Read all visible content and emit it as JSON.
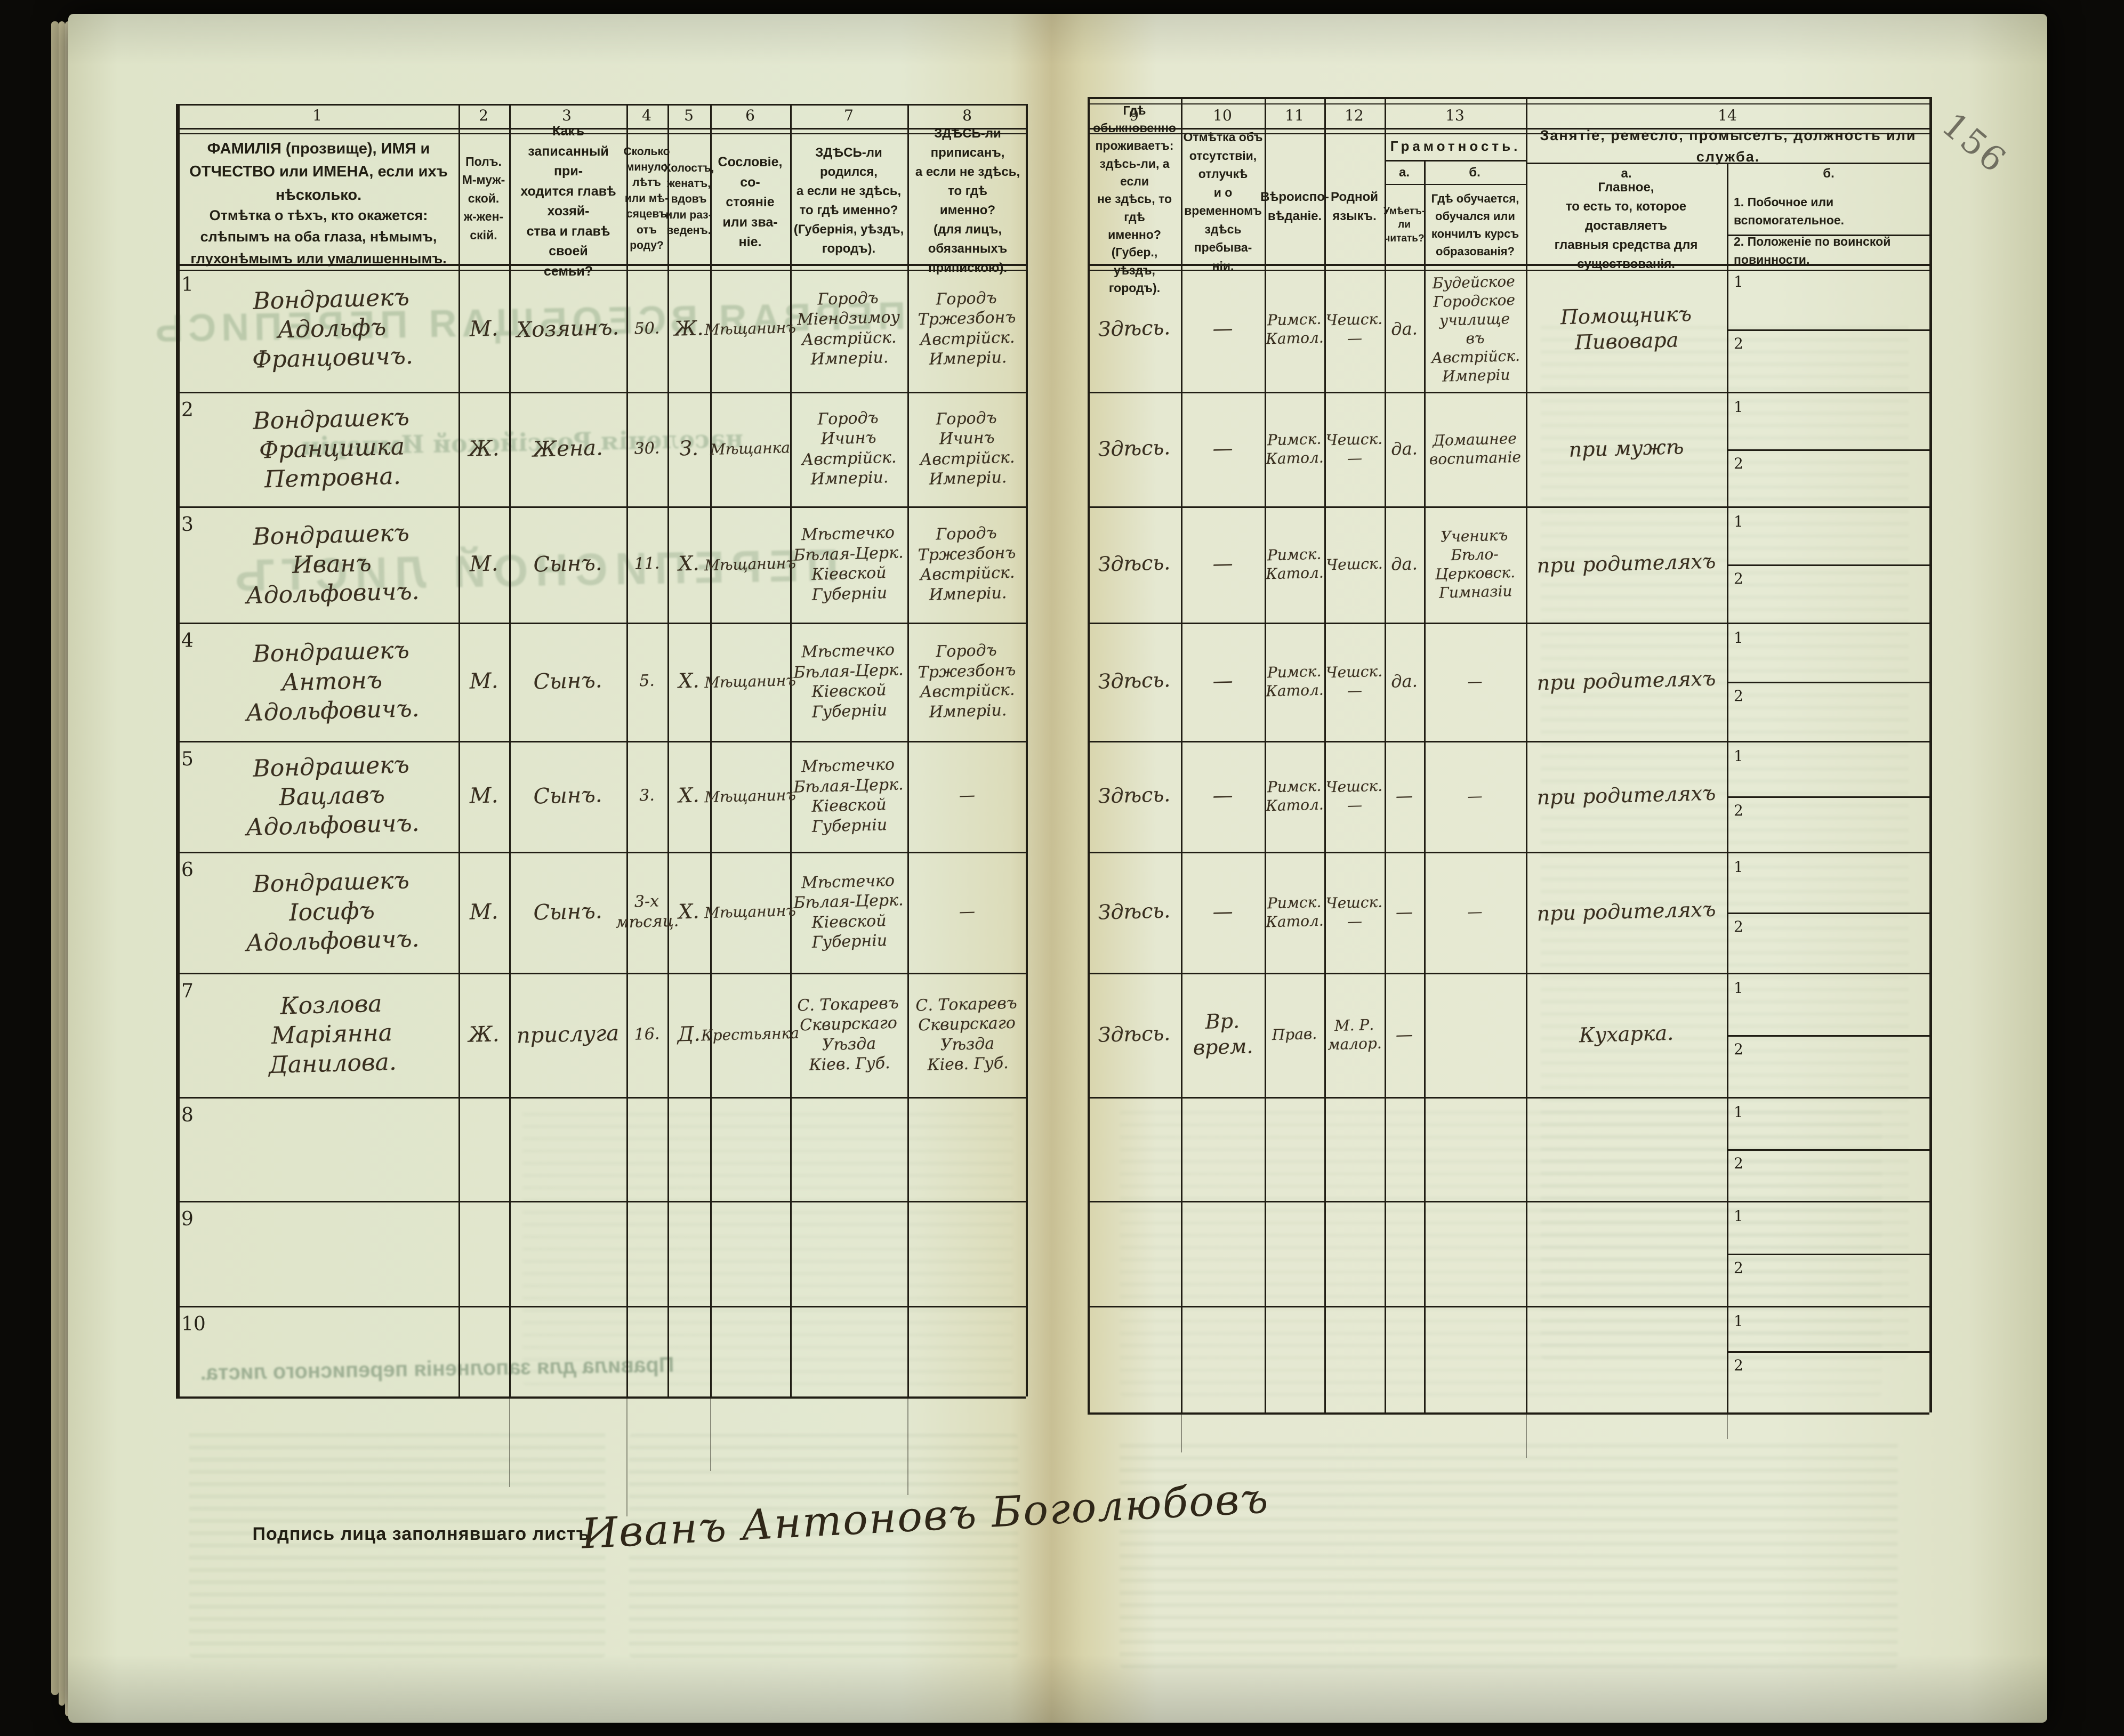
{
  "page": {
    "pencil_page_number": "156",
    "signature_label": "Подпись лица заполнявшаго листъ",
    "signature": "Иванъ Антоновъ Боголюбовъ"
  },
  "ghost_bleedthrough": {
    "census_title": "ПЕРВАЯ ВСЕОБЩАЯ ПЕРЕПИСЬ",
    "census_subtitle": "населенія Россійской Имперіи",
    "form_title": "ПЕРЕПИСНОЙ ЛИСТЪ",
    "rules_title": "Правила для заполненія переписного листа."
  },
  "table": {
    "column_numbers": [
      "1",
      "2",
      "3",
      "4",
      "5",
      "6",
      "7",
      "8",
      "9",
      "10",
      "11",
      "12",
      "13",
      "14"
    ],
    "row_sub_labels": [
      "1",
      "2"
    ],
    "headers": {
      "c1a": "ФАМИЛІЯ (прозвище), ИМЯ и ОТЧЕСТВО или ИМЕНА, если ихъ нѣсколько.",
      "c1b": "Отмѣтка о тѣхъ, кто окажется: слѣпымъ на оба глаза, нѣмымъ, глухонѣмымъ или умалишеннымъ.",
      "c2": "Полъ.\nМ-муж-\nской.\nж-жен-\nскій.",
      "c3": "Какъ записанный при-\nходится главѣ хозяй-\nства и главѣ своей\nсемьи?",
      "c4": "Сколько\nминуло\nлѣтъ\nили мѣ-\nсяцевъ\nотъ роду?",
      "c5": "Холостъ,\nженатъ,\nвдовъ\nили раз-\nведенъ.",
      "c6": "Сословіе, со-\nстояніе или зва-\nніе.",
      "c7": "ЗДѢСЬ-ли родился,\nа если не здѣсь,\nто гдѣ именно?\n(Губернія, уѣздъ, городъ).",
      "c8": "ЗДѢСЬ-ли приписанъ,\nа если не здѣсь, то гдѣ\nименно?\n(для лицъ, обязанныхъ\nприпискою).",
      "c9": "Гдѣ обыкновенно\nпроживаетъ:\nздѣсь-ли, а если\nне здѣсь, то гдѣ\nименно?\n(Губер., уѣздъ, городъ).",
      "c10": "Отмѣтка объ\nотсутствіи, отлучкѣ\nи о временномъ\nздѣсь пребыва-\nніи.",
      "c11": "Вѣроиспо-\nвѣданіе.",
      "c12": "Родной\nязыкъ.",
      "c13": "Грамотность.",
      "c13a_label": "а.",
      "c13b_label": "б.",
      "c13a": "Умѣетъ-\nли\nчитать?",
      "c13b": "Гдѣ обучается,\nобучался или\nкончилъ курсъ\nобразованія?",
      "c14": "Занятіе, ремесло, промыселъ, должность или служба.",
      "c14a_label": "а.",
      "c14b_label": "б.",
      "c14a": "Главное,\nто есть то, которое доставляетъ\nглавныя средства для существованія.",
      "c14b_item1": "1.  Побочное или вспомогательное.",
      "c14b_item2": "2.  Положеніе по воинской повинности."
    }
  },
  "rows": [
    {
      "num": "1",
      "name": "Вондрашекъ\nАдольфъ\nФранцовичъ.",
      "sex": "М.",
      "relation": "Хозяинъ.",
      "age": "50.",
      "marital": "Ж.",
      "estate": "Мѣщанинъ",
      "birthplace": "Городъ\nМіендзимоу\nАвстрійск.\nИмперіи.",
      "registered": "Городъ\nТржезбонъ\nАвстрійск.\nИмперіи.",
      "residence": "Здѣсь.",
      "absence": "—",
      "religion": "Римск.\nКатол.",
      "language": "Чешск.\n—",
      "literacy_reads": "да.",
      "literacy_school": "Будейское\nГородское\nучилище\nвъ Австрійск.\nИмперіи",
      "occupation_main": "Помощникъ\nПивовара"
    },
    {
      "num": "2",
      "name": "Вондрашекъ\nФранцишка\nПетровна.",
      "sex": "Ж.",
      "relation": "Жена.",
      "age": "30.",
      "marital": "З.",
      "estate": "Мѣщанка",
      "birthplace": "Городъ\nИчинъ\nАвстрійск.\nИмперіи.",
      "registered": "Городъ\nИчинъ\nАвстрійск.\nИмперіи.",
      "residence": "Здѣсь.",
      "absence": "—",
      "religion": "Римск.\nКатол.",
      "language": "Чешск.\n—",
      "literacy_reads": "да.",
      "literacy_school": "Домашнее\nвоспитаніе",
      "occupation_main": "при мужѣ"
    },
    {
      "num": "3",
      "name": "Вондрашекъ\nИванъ\nАдольфовичъ.",
      "sex": "М.",
      "relation": "Сынъ.",
      "age": "11.",
      "marital": "Х.",
      "estate": "Мѣщанинъ",
      "birthplace": "Мѣстечко\nБѣлая-Церк.\nКіевской\nГуберніи",
      "registered": "Городъ\nТржезбонъ\nАвстрійск.\nИмперіи.",
      "residence": "Здѣсь.",
      "absence": "—",
      "religion": "Римск.\nКатол.",
      "language": "Чешск.",
      "literacy_reads": "да.",
      "literacy_school": "Ученикъ\nБѣло-\nЦерковск.\nГимназіи",
      "occupation_main": "при родителяхъ"
    },
    {
      "num": "4",
      "name": "Вондрашекъ\nАнтонъ\nАдольфовичъ.",
      "sex": "М.",
      "relation": "Сынъ.",
      "age": "5.",
      "marital": "Х.",
      "estate": "Мѣщанинъ",
      "birthplace": "Мѣстечко\nБѣлая-Церк.\nКіевской\nГуберніи",
      "registered": "Городъ\nТржезбонъ\nАвстрійск.\nИмперіи.",
      "residence": "Здѣсь.",
      "absence": "—",
      "religion": "Римск.\nКатол.",
      "language": "Чешск.\n—",
      "literacy_reads": "да.",
      "literacy_school": "—",
      "occupation_main": "при родителяхъ"
    },
    {
      "num": "5",
      "name": "Вондрашекъ\nВацлавъ\nАдольфовичъ.",
      "sex": "М.",
      "relation": "Сынъ.",
      "age": "3.",
      "marital": "Х.",
      "estate": "Мѣщанинъ",
      "birthplace": "Мѣстечко\nБѣлая-Церк.\nКіевской\nГуберніи",
      "registered": "—",
      "residence": "Здѣсь.",
      "absence": "—",
      "religion": "Римск.\nКатол.",
      "language": "Чешск.\n—",
      "literacy_reads": "—",
      "literacy_school": "—",
      "occupation_main": "при родителяхъ"
    },
    {
      "num": "6",
      "name": "Вондрашекъ\nІосифъ\nАдольфовичъ.",
      "sex": "М.",
      "relation": "Сынъ.",
      "age": "3-х\nмѣсяц.",
      "marital": "Х.",
      "estate": "Мѣщанинъ",
      "birthplace": "Мѣстечко\nБѣлая-Церк.\nКіевской\nГуберніи",
      "registered": "—",
      "residence": "Здѣсь.",
      "absence": "—",
      "religion": "Римск.\nКатол.",
      "language": "Чешск.\n—",
      "literacy_reads": "—",
      "literacy_school": "—",
      "occupation_main": "при родителяхъ"
    },
    {
      "num": "7",
      "name": "Козлова\nМаріянна\nДанилова.",
      "sex": "Ж.",
      "relation": "прислуга",
      "age": "16.",
      "marital": "Д.",
      "estate": "Крестьянка",
      "birthplace": "С. Токаревъ\nСквирскаго\nУѣзда\nКіев. Губ.",
      "registered": "С. Токаревъ\nСквирскаго\nУѣзда\nКіев. Губ.",
      "residence": "Здѣсь.",
      "absence": "Вр.\nврем.",
      "religion": "Прав.",
      "language": "М. Р.\nмалор.",
      "literacy_reads": "—",
      "literacy_school": "",
      "occupation_main": "Кухарка."
    },
    {
      "num": "8"
    },
    {
      "num": "9"
    },
    {
      "num": "10"
    }
  ]
}
